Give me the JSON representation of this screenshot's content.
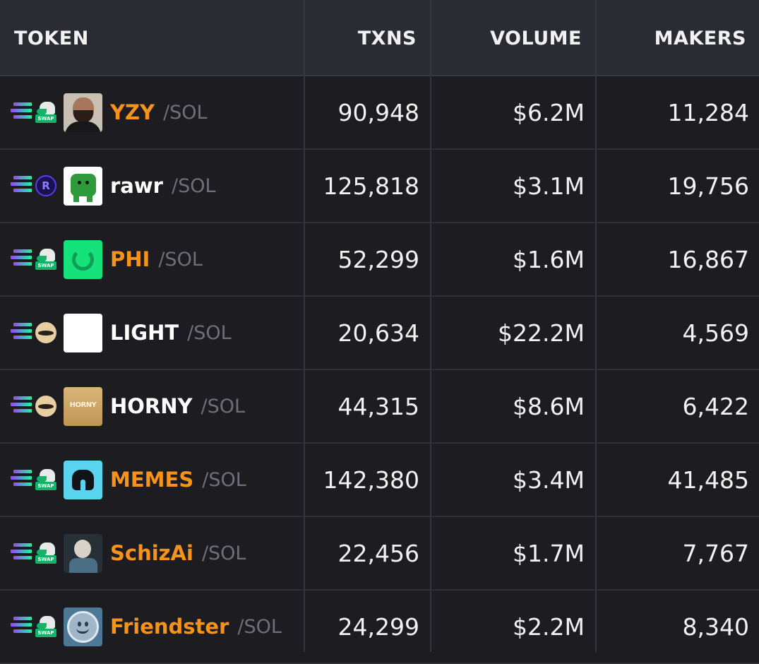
{
  "header": {
    "token": "TOKEN",
    "txns": "TXNS",
    "volume": "VOLUME",
    "makers": "MAKERS"
  },
  "colors": {
    "background": "#1c1c21",
    "header_background": "#2b2b33",
    "boosted_name": "#f7931a",
    "quote_pair": "#6f6f78"
  },
  "rows": [
    {
      "dex": "swap-icon",
      "avatar": "yzy-avatar",
      "name": "YZY",
      "highlight": true,
      "quote": "/SOL",
      "txns": "90,948",
      "volume": "$6.2M",
      "makers": "11,284"
    },
    {
      "dex": "raydium-icon",
      "dex_letter": "R",
      "avatar": "rawr-avatar",
      "name": "rawr",
      "highlight": false,
      "quote": "/SOL",
      "txns": "125,818",
      "volume": "$3.1M",
      "makers": "19,756"
    },
    {
      "dex": "swap-icon",
      "avatar": "phi-avatar",
      "name": "PHI",
      "highlight": true,
      "quote": "/SOL",
      "txns": "52,299",
      "volume": "$1.6M",
      "makers": "16,867"
    },
    {
      "dex": "moonshot-icon",
      "avatar": "light-avatar",
      "name": "LIGHT",
      "highlight": false,
      "quote": "/SOL",
      "txns": "20,634",
      "volume": "$22.2M",
      "makers": "4,569"
    },
    {
      "dex": "moonshot-icon",
      "avatar": "horny-avatar",
      "avatar_text": "HORNY",
      "name": "HORNY",
      "highlight": false,
      "quote": "/SOL",
      "txns": "44,315",
      "volume": "$8.6M",
      "makers": "6,422"
    },
    {
      "dex": "swap-icon",
      "avatar": "memes-avatar",
      "name": "MEMES",
      "highlight": true,
      "quote": "/SOL",
      "txns": "142,380",
      "volume": "$3.4M",
      "makers": "41,485"
    },
    {
      "dex": "swap-icon",
      "avatar": "schizai-avatar",
      "name": "SchizAi",
      "highlight": true,
      "quote": "/SOL",
      "txns": "22,456",
      "volume": "$1.7M",
      "makers": "7,767"
    },
    {
      "dex": "swap-icon",
      "avatar": "friendster-avatar",
      "name": "Friendster",
      "highlight": true,
      "quote": "/SOL",
      "txns": "24,299",
      "volume": "$2.2M",
      "makers": "8,340"
    }
  ],
  "dex_swap_tag": "SWAP"
}
